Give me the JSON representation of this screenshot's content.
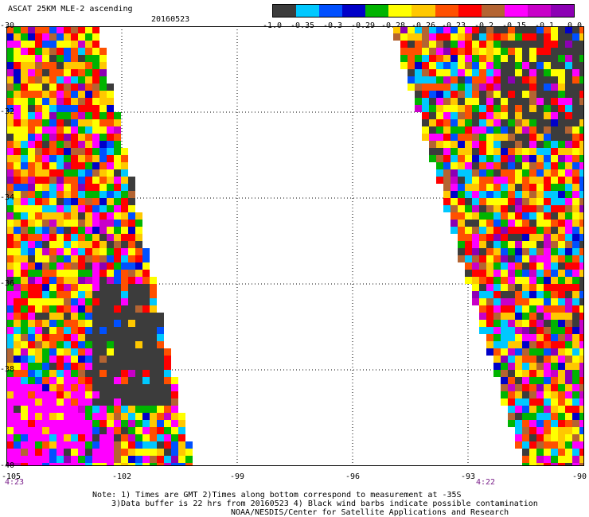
{
  "header": {
    "title": "ASCAT 25KM MLE-2 ascending",
    "date": "20160523"
  },
  "colorbar": {
    "colors": [
      "#3c3c3c",
      "#00c8ff",
      "#0050ff",
      "#0000c8",
      "#00b400",
      "#ffff00",
      "#ffc800",
      "#ff5000",
      "#ff0000",
      "#b46432",
      "#ff00ff",
      "#c800c8",
      "#8c00b4"
    ],
    "labels": [
      "-1.0",
      "-0.35",
      "-0.3",
      "-0.29",
      "-0.28",
      "-0.26",
      "-0.23",
      "-0.2",
      "-0.15",
      "-0.1",
      "0.0"
    ]
  },
  "axes": {
    "y_ticks": [
      "-30",
      "-32",
      "-34",
      "-36",
      "-38",
      "-40"
    ],
    "x_ticks": [
      "-105",
      "-102",
      "-99",
      "-96",
      "-93",
      "-90"
    ]
  },
  "times": {
    "left": "4:23",
    "right": "4:22"
  },
  "notes": {
    "line1": "Note: 1) Times are GMT 2)Times along bottom correspond to measurement at -35S",
    "line2": "3)Data buffer is 22 hrs from 20160523 4) Black wind barbs indicate possible contamination",
    "line3": "NOAA/NESDIS/Center for Satellite Applications and Research"
  }
}
